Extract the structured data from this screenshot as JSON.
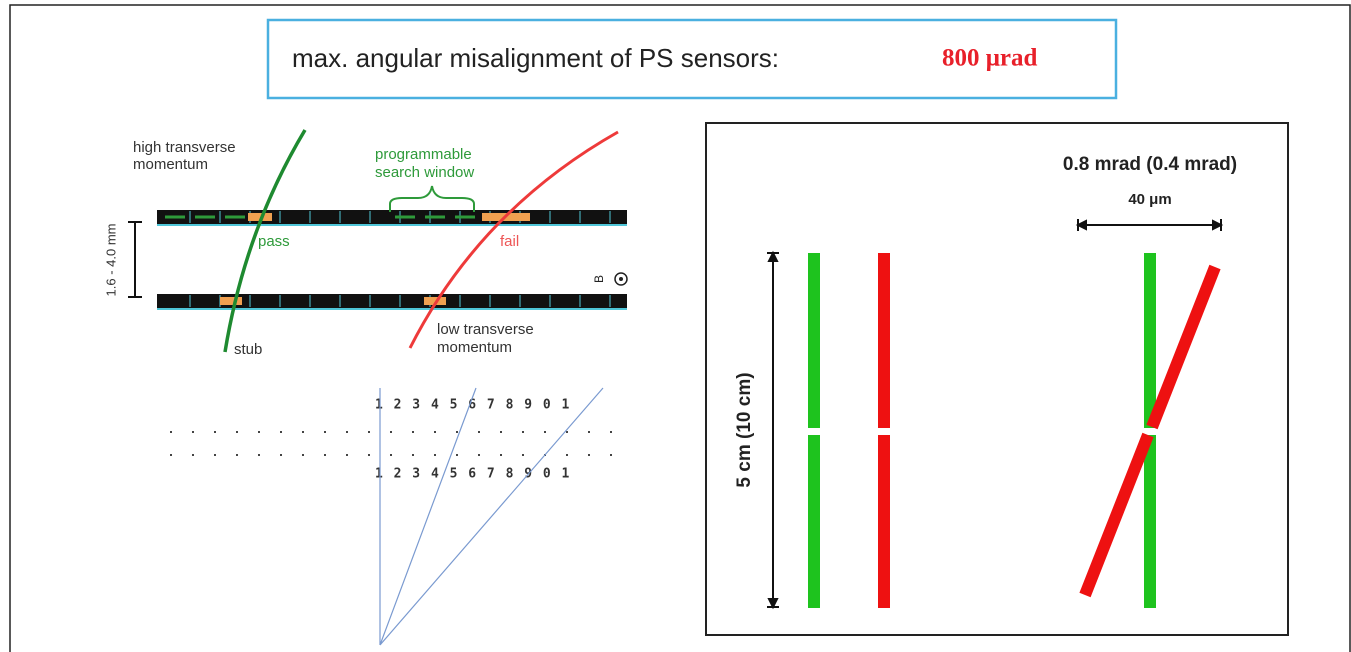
{
  "title": {
    "text": "max. angular misalignment of PS sensors:",
    "value": "800 μrad"
  },
  "left_diagram": {
    "high_pt": [
      "high transverse",
      "momentum"
    ],
    "search_window": [
      "programmable",
      "search window"
    ],
    "pass": "pass",
    "fail": "fail",
    "spacing": "1.6 - 4.0 mm",
    "field": "B",
    "stub": "stub",
    "low_pt": [
      "low transverse",
      "momentum"
    ],
    "strip_numbers": [
      "1 2 3 4 5 6 7 8 9 0 1",
      "1 2 3 4 5 6 7 8 9 0 1"
    ]
  },
  "right_diagram": {
    "angle": "0.8 mrad (0.4 mrad)",
    "offset": "40 μm",
    "length": "5 cm (10 cm)"
  }
}
